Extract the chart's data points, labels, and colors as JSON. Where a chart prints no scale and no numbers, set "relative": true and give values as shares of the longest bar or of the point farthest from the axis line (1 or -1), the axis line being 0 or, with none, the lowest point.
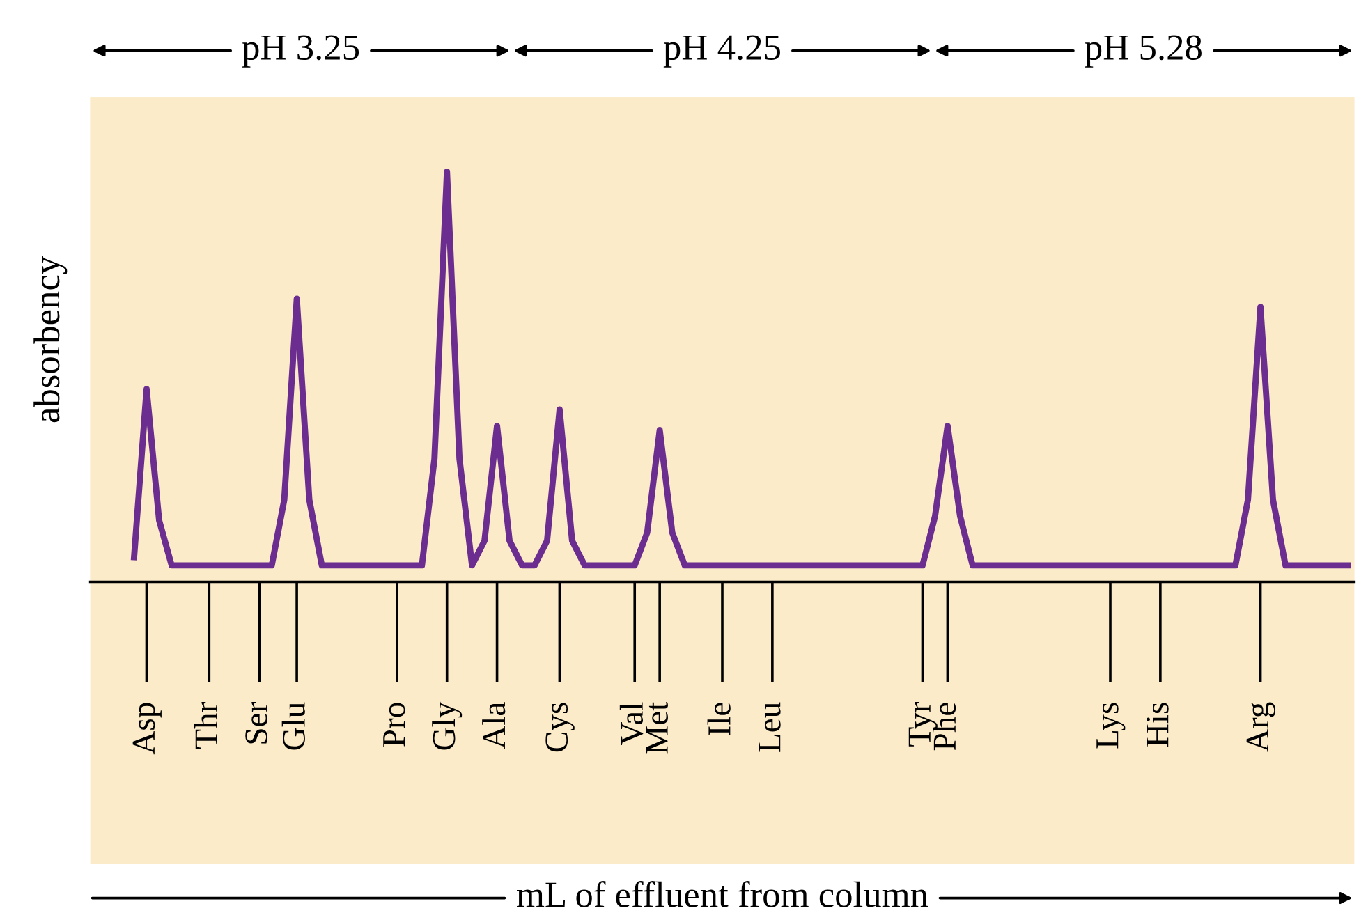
{
  "chart_data": {
    "type": "line",
    "relative": true,
    "ylabel": "absorbency",
    "xlabel": "mL of effluent from column",
    "annotations": [
      "pH 3.25",
      "pH 4.25",
      "pH 5.28"
    ],
    "categories": [
      null,
      null,
      null,
      null,
      "Asp",
      null,
      null,
      null,
      null,
      "Thr",
      null,
      null,
      null,
      "Ser",
      null,
      null,
      "Glu",
      null,
      null,
      null,
      null,
      null,
      null,
      null,
      "Pro",
      null,
      null,
      null,
      "Gly",
      null,
      null,
      null,
      "Ala",
      null,
      null,
      null,
      null,
      "Cys",
      null,
      null,
      null,
      null,
      null,
      "Val",
      null,
      "Met",
      null,
      null,
      null,
      null,
      "Ile",
      null,
      null,
      null,
      "Leu",
      null,
      null,
      null,
      null,
      null,
      null,
      null,
      null,
      null,
      null,
      null,
      "Tyr",
      null,
      "Phe",
      null,
      null,
      null,
      null,
      null,
      null,
      null,
      null,
      null,
      null,
      null,
      null,
      "Lys",
      null,
      null,
      null,
      "His",
      null,
      null,
      null,
      null,
      null,
      null,
      null,
      "Arg",
      null,
      null,
      null,
      null,
      null,
      null,
      null
    ],
    "grid": false,
    "legend": false,
    "marker": "none",
    "line_style": "solid",
    "series": [
      {
        "color": "#6b2d8f",
        "values": [
          null,
          null,
          null,
          0.06,
          0.47,
          0.15,
          0.04,
          0.04,
          0.04,
          0.04,
          0.04,
          0.04,
          0.04,
          0.04,
          0.04,
          0.2,
          0.69,
          0.2,
          0.04,
          0.04,
          0.04,
          0.04,
          0.04,
          0.04,
          0.04,
          0.04,
          0.04,
          0.3,
          1.0,
          0.3,
          0.04,
          0.1,
          0.38,
          0.1,
          0.04,
          0.04,
          0.1,
          0.42,
          0.1,
          0.04,
          0.04,
          0.04,
          0.04,
          0.04,
          0.12,
          0.37,
          0.12,
          0.04,
          0.04,
          0.04,
          0.04,
          0.04,
          0.04,
          0.04,
          0.04,
          0.04,
          0.04,
          0.04,
          0.04,
          0.04,
          0.04,
          0.04,
          0.04,
          0.04,
          0.04,
          0.04,
          0.04,
          0.16,
          0.38,
          0.16,
          0.04,
          0.04,
          0.04,
          0.04,
          0.04,
          0.04,
          0.04,
          0.04,
          0.04,
          0.04,
          0.04,
          0.04,
          0.04,
          0.04,
          0.04,
          0.04,
          0.04,
          0.04,
          0.04,
          0.04,
          0.04,
          0.04,
          0.2,
          0.67,
          0.2,
          0.04,
          0.04,
          0.04,
          0.04,
          0.04,
          0.04
        ]
      }
    ]
  }
}
